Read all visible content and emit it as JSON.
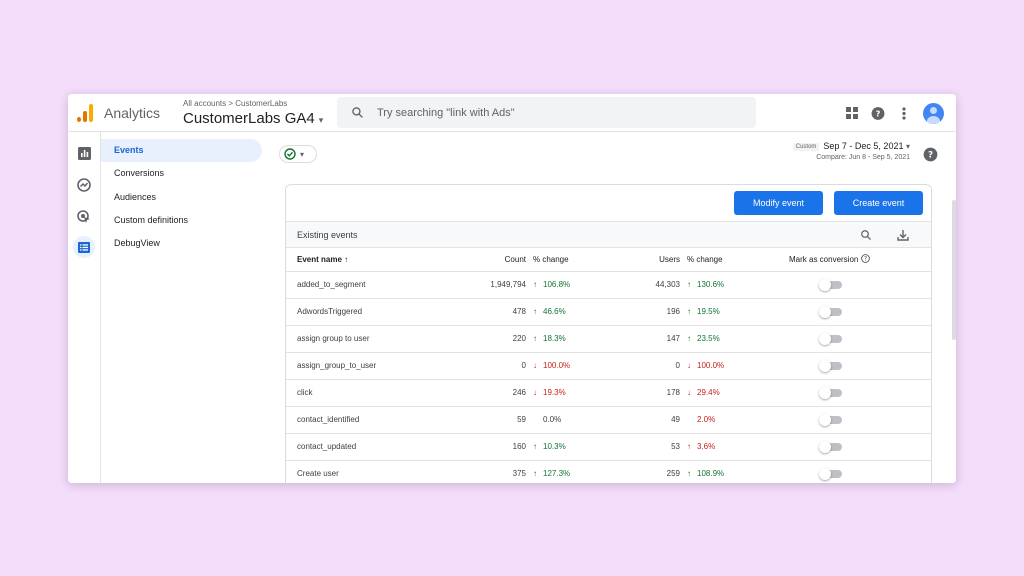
{
  "app": {
    "title": "Analytics",
    "breadcrumb": "All accounts > CustomerLabs",
    "property": "CustomerLabs GA4",
    "property_caret": "▾"
  },
  "search": {
    "placeholder": "Try searching \"link with Ads\""
  },
  "header_icons": [
    "apps-grid-icon",
    "help-icon",
    "more-vert-icon",
    "account-avatar"
  ],
  "rail_icons": [
    "reports-icon",
    "explore-icon",
    "advertising-icon",
    "configure-icon"
  ],
  "subnav": {
    "items": [
      "Events",
      "Conversions",
      "Audiences",
      "Custom definitions",
      "DebugView"
    ],
    "active": "Events"
  },
  "status_chip": {
    "icon": "check-circle-icon",
    "caret": "▾"
  },
  "date_range": {
    "badge": "Custom",
    "range": "Sep 7 - Dec 5, 2021",
    "caret": "▾",
    "compare": "Compare: Jun 8 - Sep 5, 2021"
  },
  "buttons": {
    "modify": "Modify event",
    "create": "Create event"
  },
  "table": {
    "section_title": "Existing events",
    "headers": {
      "name": "Event name",
      "sort_arrow": "↑",
      "count": "Count",
      "count_change": "% change",
      "users": "Users",
      "users_change": "% change",
      "conversion": "Mark as conversion"
    },
    "rows": [
      {
        "name": "added_to_segment",
        "count": "1,949,794",
        "count_dir": "up",
        "count_change": "106.8%",
        "users": "44,303",
        "users_dir": "up",
        "users_change": "130.6%",
        "conversion": false
      },
      {
        "name": "AdwordsTriggered",
        "count": "478",
        "count_dir": "up",
        "count_change": "46.6%",
        "users": "196",
        "users_dir": "up",
        "users_change": "19.5%",
        "conversion": false
      },
      {
        "name": "assign group to user",
        "count": "220",
        "count_dir": "up",
        "count_change": "18.3%",
        "users": "147",
        "users_dir": "up",
        "users_change": "23.5%",
        "conversion": false
      },
      {
        "name": "assign_group_to_user",
        "count": "0",
        "count_dir": "down",
        "count_change": "100.0%",
        "users": "0",
        "users_dir": "down",
        "users_change": "100.0%",
        "conversion": false
      },
      {
        "name": "click",
        "count": "246",
        "count_dir": "down",
        "count_change": "19.3%",
        "users": "178",
        "users_dir": "down",
        "users_change": "29.4%",
        "conversion": false
      },
      {
        "name": "contact_identified",
        "count": "59",
        "count_dir": "none",
        "count_change": "0.0%",
        "users": "49",
        "users_dir": "down-plain",
        "users_change": "2.0%",
        "conversion": false
      },
      {
        "name": "contact_updated",
        "count": "160",
        "count_dir": "up",
        "count_change": "10.3%",
        "users": "53",
        "users_dir": "up-red",
        "users_change": "3.6%",
        "conversion": false
      },
      {
        "name": "Create user",
        "count": "375",
        "count_dir": "up",
        "count_change": "127.3%",
        "users": "259",
        "users_dir": "up",
        "users_change": "108.9%",
        "conversion": false
      }
    ]
  },
  "colors": {
    "accent": "#1a73e8",
    "up": "#137333",
    "down": "#c5221f",
    "background": "#f4dcfb"
  }
}
